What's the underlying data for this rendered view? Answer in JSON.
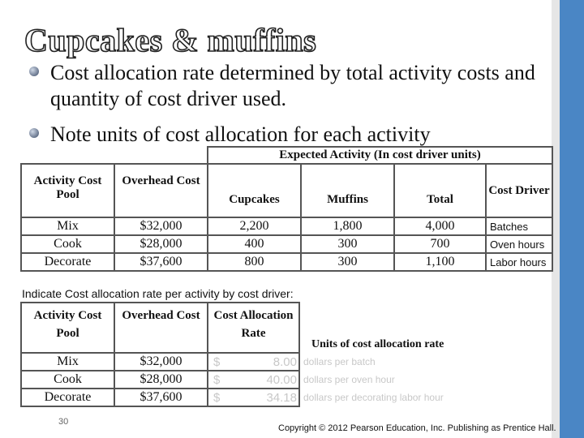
{
  "title": "Cupcakes & muffins",
  "bullets": [
    "Cost allocation rate determined by total activity costs and quantity of cost driver used.",
    "Note units of cost allocation for each activity"
  ],
  "table1": {
    "group_header": "Expected Activity (In cost driver units)",
    "header": [
      "Activity Cost Pool",
      "Overhead Cost",
      "Cupcakes",
      "Muffins",
      "Total",
      "Cost Driver"
    ],
    "rows": [
      [
        "Mix",
        "$32,000",
        "2,200",
        "1,800",
        "4,000",
        "Batches"
      ],
      [
        "Cook",
        "$28,000",
        "400",
        "300",
        "700",
        "Oven hours"
      ],
      [
        "Decorate",
        "$37,600",
        "800",
        "300",
        "1,100",
        "Labor hours"
      ]
    ]
  },
  "instruction": "Indicate Cost allocation rate per activity by cost driver:",
  "table2": {
    "header": [
      "Activity Cost Pool",
      "Overhead Cost",
      "Cost Allocation Rate",
      "Units of cost allocation rate"
    ],
    "rows": [
      [
        "Mix",
        "$32,000",
        "$",
        "8.00",
        "dollars per batch"
      ],
      [
        "Cook",
        "$28,000",
        "$",
        "40.00",
        "dollars per oven hour"
      ],
      [
        "Decorate",
        "$37,600",
        "$",
        "34.18",
        "dollars per decorating labor hour"
      ]
    ]
  },
  "slide_number": "30",
  "footer": "Copyright © 2012 Pearson Education, Inc. Publishing as Prentice Hall."
}
